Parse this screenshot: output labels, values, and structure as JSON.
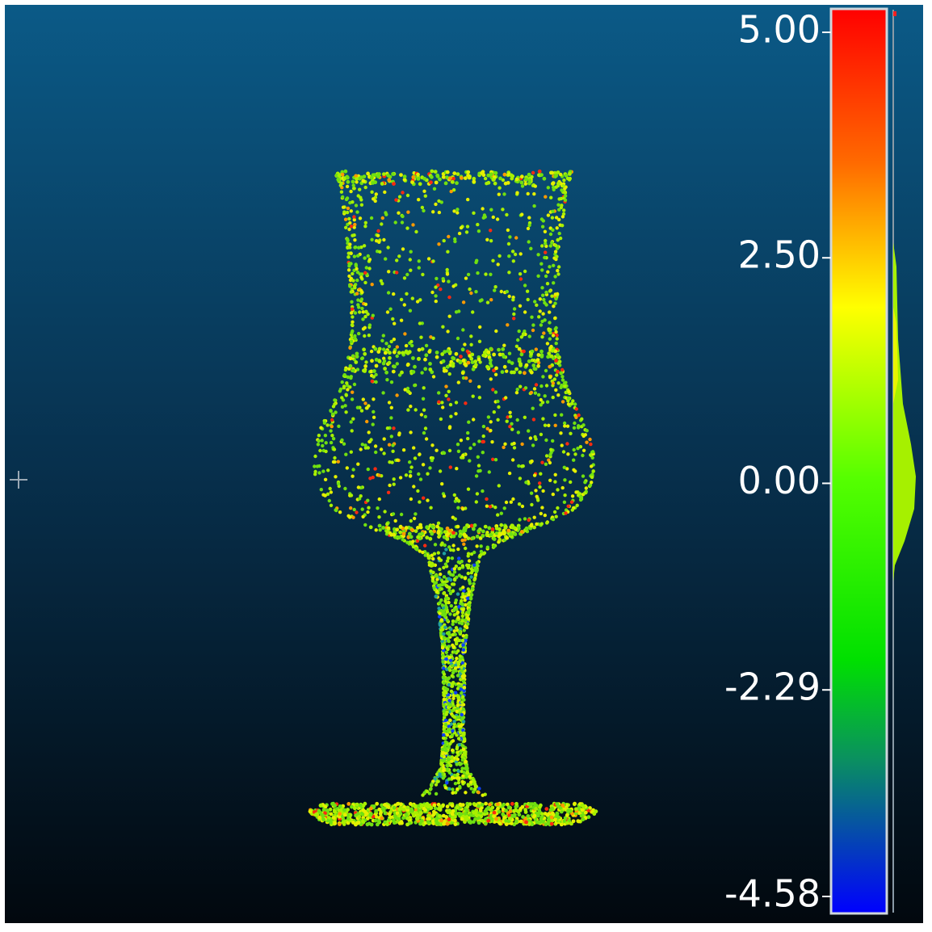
{
  "color_scale": {
    "ticks": [
      {
        "value": 5,
        "label": "5.00"
      },
      {
        "value": 2.5,
        "label": "2.50"
      },
      {
        "value": 0,
        "label": "0.00"
      },
      {
        "value": -2.29,
        "label": "-2.29"
      },
      {
        "value": -4.58,
        "label": "-4.58"
      }
    ]
  }
}
